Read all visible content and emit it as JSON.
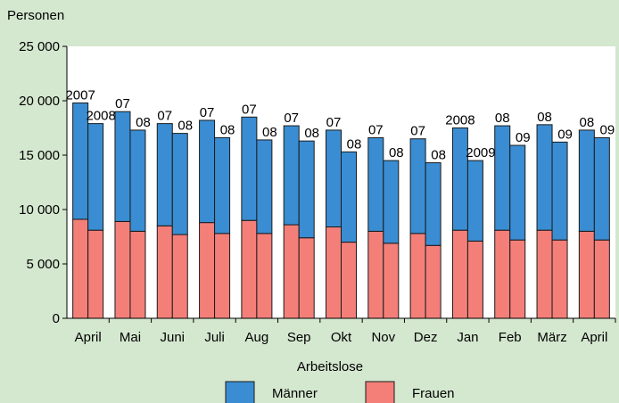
{
  "chart_data": {
    "type": "grouped_stacked_bar",
    "y_axis_label": "Personen",
    "x_axis_label": "Arbeitslose",
    "categories": [
      "April",
      "Mai",
      "Juni",
      "Juli",
      "Aug",
      "Sep",
      "Okt",
      "Nov",
      "Dez",
      "Jan",
      "Feb",
      "März",
      "April"
    ],
    "bar_labels": [
      [
        "2007",
        "2008"
      ],
      [
        "07",
        "08"
      ],
      [
        "07",
        "08"
      ],
      [
        "07",
        "08"
      ],
      [
        "07",
        "08"
      ],
      [
        "07",
        "08"
      ],
      [
        "07",
        "08"
      ],
      [
        "07",
        "08"
      ],
      [
        "07",
        "08"
      ],
      [
        "2008",
        "2009"
      ],
      [
        "08",
        "09"
      ],
      [
        "08",
        "09"
      ],
      [
        "08",
        "09"
      ]
    ],
    "series": [
      {
        "name": "Männer",
        "color": "#3a8dd2",
        "values": [
          [
            10700,
            9800
          ],
          [
            10100,
            9300
          ],
          [
            9400,
            9300
          ],
          [
            9400,
            8800
          ],
          [
            9500,
            8600
          ],
          [
            9100,
            8900
          ],
          [
            8900,
            8300
          ],
          [
            8600,
            7600
          ],
          [
            8700,
            7600
          ],
          [
            9400,
            7400
          ],
          [
            9600,
            8700
          ],
          [
            9700,
            9000
          ],
          [
            9300,
            9400
          ]
        ]
      },
      {
        "name": "Frauen",
        "color": "#f47f79",
        "values": [
          [
            9100,
            8100
          ],
          [
            8900,
            8000
          ],
          [
            8500,
            7700
          ],
          [
            8800,
            7800
          ],
          [
            9000,
            7800
          ],
          [
            8600,
            7400
          ],
          [
            8400,
            7000
          ],
          [
            8000,
            6900
          ],
          [
            7800,
            6700
          ],
          [
            8100,
            7100
          ],
          [
            8100,
            7200
          ],
          [
            8100,
            7200
          ],
          [
            8000,
            7200
          ]
        ]
      }
    ],
    "ylim": [
      0,
      25000
    ],
    "yticks": [
      0,
      {
        "value": 5000,
        "label": "5 000"
      },
      {
        "value": 10000,
        "label": "10 000"
      },
      {
        "value": 15000,
        "label": "15 000"
      },
      {
        "value": 20000,
        "label": "20 000"
      },
      {
        "value": 25000,
        "label": "25 000"
      }
    ],
    "grid": false
  }
}
